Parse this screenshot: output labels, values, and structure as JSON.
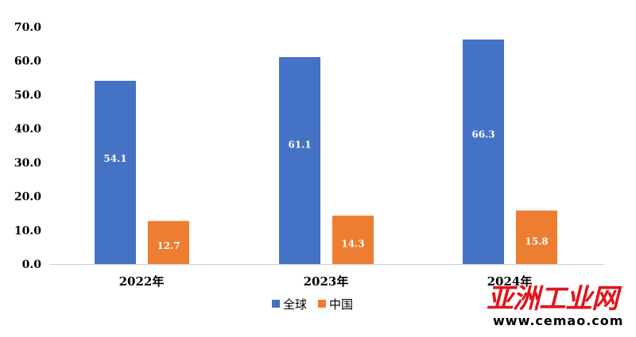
{
  "chart_data": {
    "type": "bar",
    "categories": [
      "2022年",
      "2023年",
      "2024年"
    ],
    "series": [
      {
        "name": "全球",
        "values": [
          54.1,
          61.1,
          66.3
        ],
        "color": "#4472c4"
      },
      {
        "name": "中国",
        "values": [
          12.7,
          14.3,
          15.8
        ],
        "color": "#ed7d31"
      }
    ],
    "ylim": [
      0,
      70
    ],
    "yticks": [
      "0.0",
      "10.0",
      "20.0",
      "30.0",
      "40.0",
      "50.0",
      "60.0",
      "70.0"
    ],
    "data_labels": [
      [
        "54.1",
        "61.1",
        "66.3"
      ],
      [
        "12.7",
        "14.3",
        "15.8"
      ]
    ],
    "title": "",
    "xlabel": "",
    "ylabel": "",
    "grid": false,
    "legend_position": "bottom"
  },
  "watermark": {
    "brand": "亚洲工业网",
    "url": "www.cemao.com",
    "color": "#e0151c"
  }
}
